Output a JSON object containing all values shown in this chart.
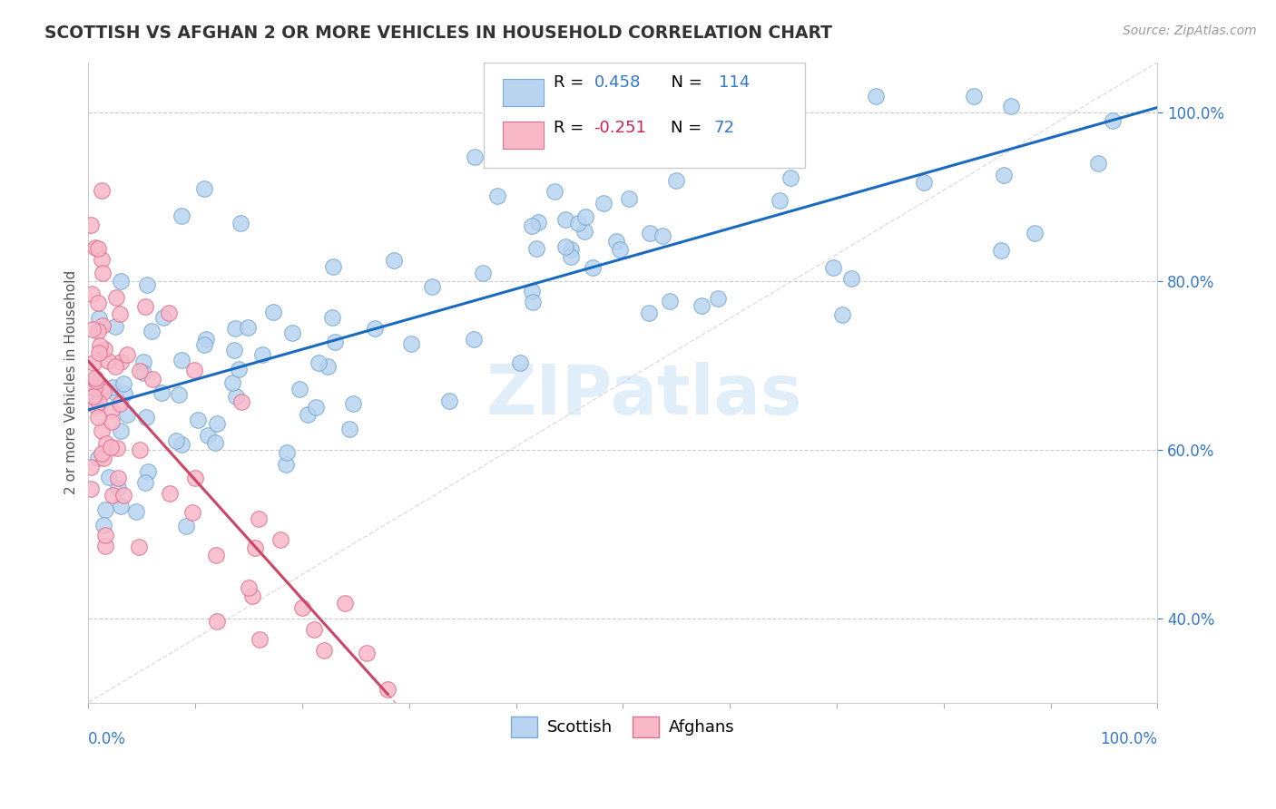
{
  "title": "SCOTTISH VS AFGHAN 2 OR MORE VEHICLES IN HOUSEHOLD CORRELATION CHART",
  "source_text": "Source: ZipAtlas.com",
  "ylabel": "2 or more Vehicles in Household",
  "watermark": "ZIPatlas",
  "scottish_color": "#b8d4f0",
  "scottish_edge": "#7aaad0",
  "afghan_color": "#f8b8c8",
  "afghan_edge": "#e07090",
  "scottish_line_color": "#1a6bbf",
  "afghan_line_color": "#cc4466",
  "diagonal_color": "#ddcccc",
  "r_blue": "#3377cc",
  "r_pink": "#cc2255",
  "n_blue": "#3377cc",
  "ytick_color": "#3377cc",
  "xtick_color": "#3377cc",
  "ymin": 0.3,
  "ymax": 1.06,
  "xmin": 0.0,
  "xmax": 1.0,
  "ytick_vals": [
    0.4,
    0.6,
    0.8,
    1.0
  ],
  "ytick_labels": [
    "40.0%",
    "60.0%",
    "80.0%",
    "100.0%"
  ]
}
